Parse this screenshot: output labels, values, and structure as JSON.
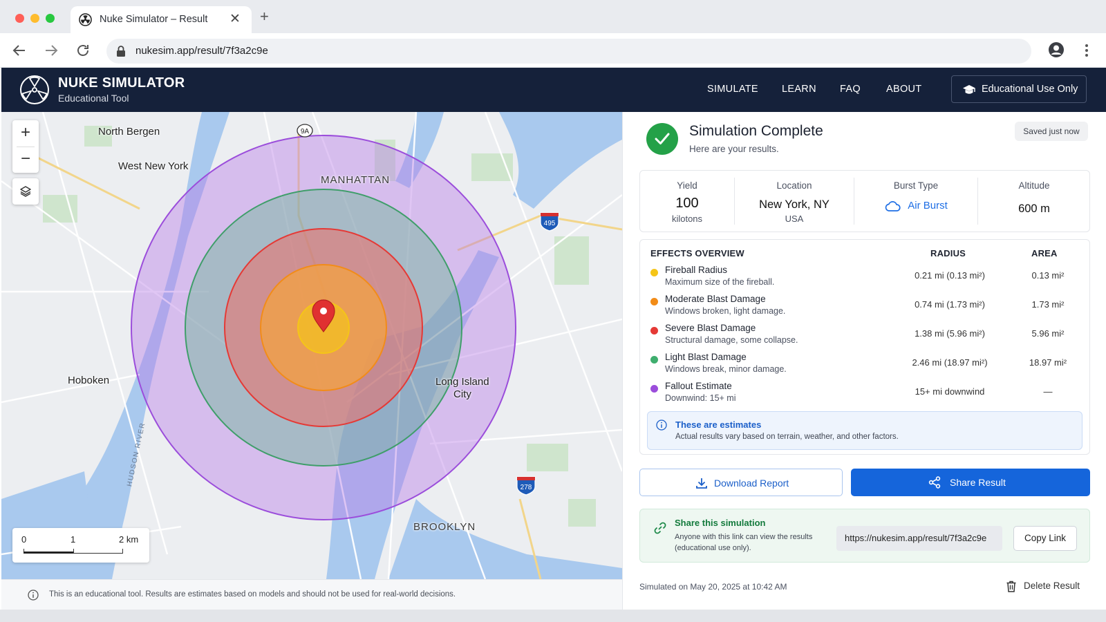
{
  "browser": {
    "tab_title": "Nuke Simulator – Result",
    "tab_icon": "radiation-icon",
    "url": "nukesim.app/result/7f3a2c9e"
  },
  "header": {
    "title": "NUKE SIMULATOR",
    "subtitle": "Educational Tool",
    "nav": [
      "SIMULATE",
      "LEARN",
      "FAQ",
      "ABOUT"
    ],
    "edu_button": "Educational Use Only"
  },
  "map": {
    "labels": {
      "north_bergen": "North Bergen",
      "west_new_york": "West New York",
      "manhattan": "MANHATTAN",
      "hoboken": "Hoboken",
      "long_island_city_1": "Long Island",
      "long_island_city_2": "City",
      "brooklyn": "BROOKLYN",
      "hudson_river": "HUDSON RIVER"
    },
    "shields": {
      "route_9a": "9A",
      "i495": "495",
      "i278": "278"
    },
    "zoom_in": "+",
    "zoom_out": "−",
    "scale": {
      "zero": "0",
      "one": "1",
      "two": "2 km"
    },
    "zone_colors": {
      "fallout": "#a25be0",
      "light": "#3f9e6a",
      "severe": "#e53935",
      "moderate": "#f39c12",
      "fireball": "#f5c518"
    }
  },
  "disclaimer": "This is an educational tool. Results are estimates based on models and should not be used for real-world decisions.",
  "result": {
    "title": "Simulation Complete",
    "subtitle": "Here are your results.",
    "saved": "Saved just now",
    "stats": {
      "yield_label": "Yield",
      "yield_value": "100",
      "yield_unit": "kilotons",
      "location_label": "Location",
      "location_value": "New York, NY",
      "location_sub": "USA",
      "burst_label": "Burst Type",
      "burst_value": "Air Burst",
      "altitude_label": "Altitude",
      "altitude_value": "600 m"
    },
    "effects": {
      "heading": "EFFECTS OVERVIEW",
      "col_radius": "RADIUS",
      "col_area": "AREA",
      "rows": [
        {
          "name": "Fireball Radius",
          "desc": "Maximum size of the fireball.",
          "radius": "0.21 mi (0.13 mi²)",
          "area": "0.13 mi²",
          "color": "#f5c518"
        },
        {
          "name": "Moderate Blast Damage",
          "desc": "Windows broken, light damage.",
          "radius": "0.74 mi (1.73 mi²)",
          "area": "1.73 mi²",
          "color": "#f28c18"
        },
        {
          "name": "Severe Blast Damage",
          "desc": "Structural damage, some collapse.",
          "radius": "1.38 mi (5.96 mi²)",
          "area": "5.96 mi²",
          "color": "#e53935"
        },
        {
          "name": "Light Blast Damage",
          "desc": "Windows break, minor damage.",
          "radius": "2.46 mi (18.97 mi²)",
          "area": "18.97 mi²",
          "color": "#3fae6e"
        },
        {
          "name": "Fallout Estimate",
          "desc": "Downwind: 15+ mi",
          "radius": "15+ mi downwind",
          "area": "—",
          "color": "#9b4ddb"
        }
      ]
    },
    "estimate": {
      "title": "These are estimates",
      "text": "Actual results vary based on terrain, weather, and other factors."
    },
    "download_label": "Download Report",
    "share_label": "Share Result",
    "share_box": {
      "title": "Share this simulation",
      "text": "Anyone with this link can view the results (educational use only).",
      "link": "https://nukesim.app/result/7f3a2c9e",
      "copy_label": "Copy Link"
    },
    "simulated_on": "Simulated on May 20, 2025 at 10:42 AM",
    "delete_label": "Delete Result"
  }
}
